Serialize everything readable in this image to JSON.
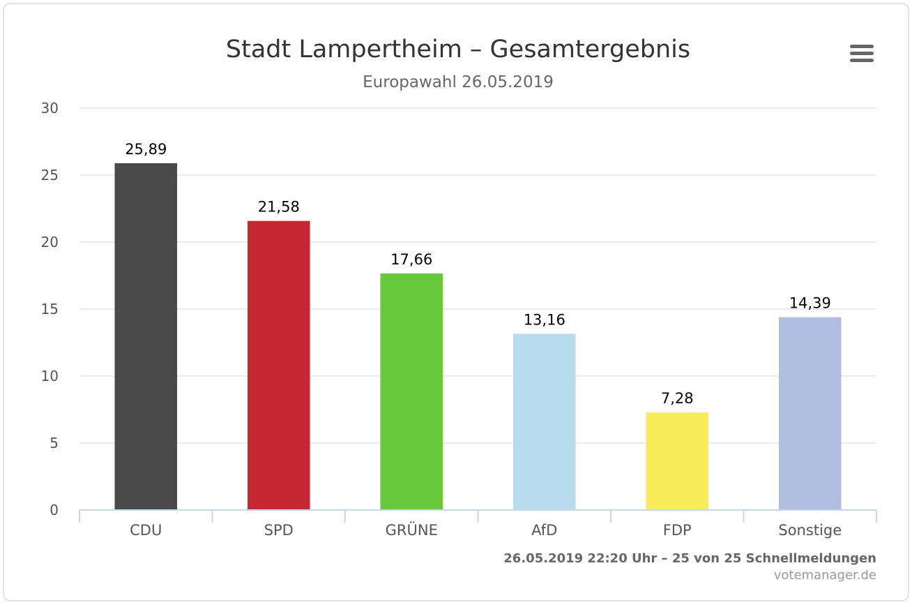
{
  "chart_data": {
    "type": "bar",
    "title": "Stadt Lampertheim – Gesamtergebnis",
    "subtitle": "Europawahl 26.05.2019",
    "xlabel": "",
    "ylabel": "",
    "ylim": [
      0,
      30
    ],
    "yticks": [
      0,
      5,
      10,
      15,
      20,
      25,
      30
    ],
    "grid": true,
    "categories": [
      "CDU",
      "SPD",
      "GRÜNE",
      "AfD",
      "FDP",
      "Sonstige"
    ],
    "values": [
      25.89,
      21.58,
      17.66,
      13.16,
      7.28,
      14.39
    ],
    "value_labels": [
      "25,89",
      "21,58",
      "17,66",
      "13,16",
      "7,28",
      "14,39"
    ],
    "colors": [
      "#4a4a4a",
      "#c42632",
      "#66c93c",
      "#b9dcec",
      "#f8eb5c",
      "#b0bfe0"
    ]
  },
  "credits": {
    "line1": "26.05.2019 22:20 Uhr – 25 von 25 Schnellmeldungen",
    "line2": "votemanager.de"
  },
  "menu": {
    "icon": "hamburger-menu-icon"
  }
}
